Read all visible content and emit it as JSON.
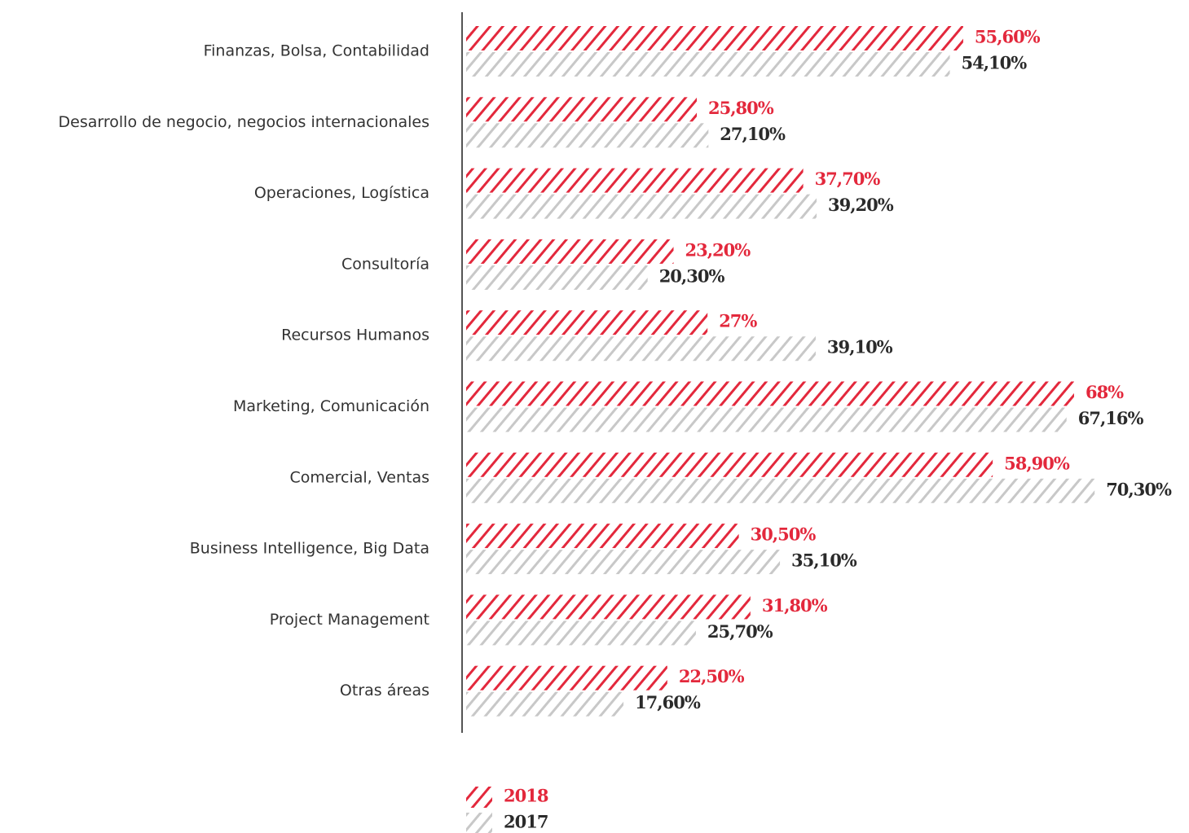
{
  "chart_data": {
    "type": "barh",
    "categories": [
      "Finanzas, Bolsa, Contabilidad",
      "Desarrollo de negocio, negocios internacionales",
      "Operaciones, Logística",
      "Consultoría",
      "Recursos Humanos",
      "Marketing, Comunicación",
      "Comercial, Ventas",
      "Business Intelligence, Big Data",
      "Project Management",
      "Otras áreas"
    ],
    "series": [
      {
        "name": "2018",
        "color": "#e3283c",
        "values": [
          55.6,
          25.8,
          37.7,
          23.2,
          27,
          68,
          58.9,
          30.5,
          31.8,
          22.5
        ],
        "value_labels": [
          "55,60%",
          "25,80%",
          "37,70%",
          "23,20%",
          "27%",
          "68%",
          "58,90%",
          "30,50%",
          "31,80%",
          "22,50%"
        ]
      },
      {
        "name": "2017",
        "color": "#c8c8c8",
        "values": [
          54.1,
          27.1,
          39.2,
          20.3,
          39.1,
          67.16,
          70.3,
          35.1,
          25.7,
          17.6
        ],
        "value_labels": [
          "54,10%",
          "27,10%",
          "39,20%",
          "20,30%",
          "39,10%",
          "67,16%",
          "70,30%",
          "35,10%",
          "25,70%",
          "17,60%"
        ]
      }
    ],
    "xlim": [
      0,
      100
    ]
  }
}
